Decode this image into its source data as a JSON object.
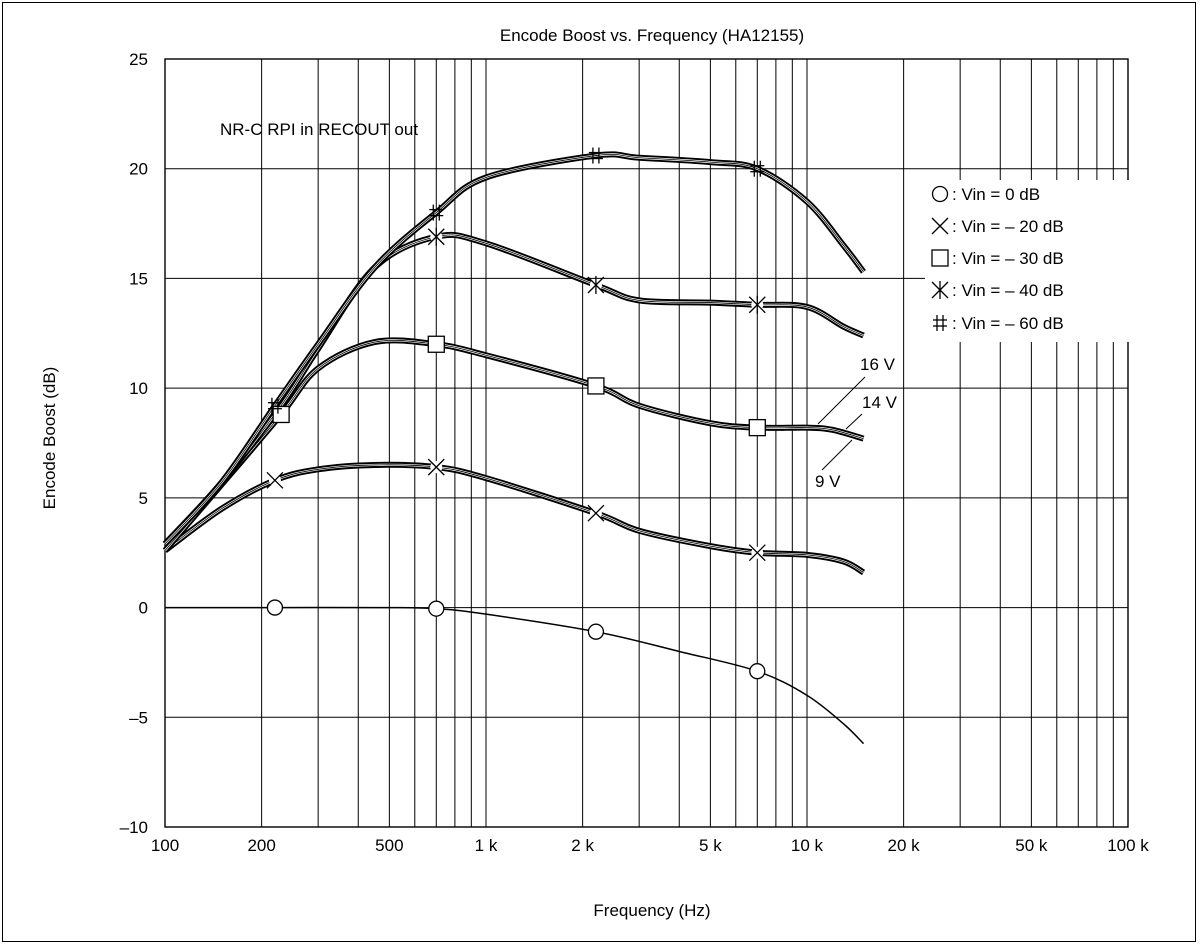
{
  "chart_data": {
    "type": "line",
    "title": "Encode Boost vs. Frequency (HA12155)",
    "xlabel": "Frequency (Hz)",
    "ylabel": "Encode Boost (dB)",
    "x_scale": "log",
    "xlim": [
      100,
      100000
    ],
    "ylim": [
      -10,
      25
    ],
    "x_ticks": [
      100,
      200,
      500,
      1000,
      2000,
      5000,
      10000,
      20000,
      50000,
      100000
    ],
    "x_tick_labels": [
      "100",
      "200",
      "500",
      "1 k",
      "2 k",
      "5 k",
      "10 k",
      "20 k",
      "50 k",
      "100 k"
    ],
    "y_ticks": [
      -10,
      -5,
      0,
      5,
      10,
      15,
      20,
      25
    ],
    "y_tick_labels": [
      "–10",
      "–5",
      "0",
      "5",
      "10",
      "15",
      "20",
      "25"
    ],
    "grid": true,
    "legend_position": "right",
    "annotations": {
      "condition": "NR-C  RPI in RECOUT out",
      "voltage_labels": [
        "16 V",
        "14 V",
        "9 V"
      ]
    },
    "series": [
      {
        "name": ": Vin = 0 dB",
        "marker": "circle",
        "x": [
          100,
          220,
          500,
          700,
          1000,
          2200,
          4000,
          7000,
          10000,
          13000,
          15000
        ],
        "y": [
          0,
          0,
          0,
          -0.05,
          -0.3,
          -1.1,
          -2.0,
          -2.9,
          -4.0,
          -5.3,
          -6.2
        ],
        "marker_x": [
          220,
          700,
          2200,
          7000
        ]
      },
      {
        "name": ": Vin = – 20 dB",
        "marker": "x",
        "x": [
          100,
          150,
          220,
          300,
          450,
          700,
          1000,
          2200,
          3000,
          5000,
          7000,
          10000,
          13000,
          15000
        ],
        "y": [
          2.6,
          4.5,
          5.8,
          6.3,
          6.5,
          6.4,
          5.9,
          4.3,
          3.5,
          2.8,
          2.5,
          2.4,
          2.1,
          1.6
        ],
        "marker_x": [
          220,
          700,
          2200,
          7000
        ]
      },
      {
        "name": ": Vin = – 30 dB",
        "marker": "square",
        "x": [
          100,
          150,
          230,
          300,
          450,
          700,
          1000,
          2200,
          3000,
          5000,
          7000,
          10000,
          12000,
          15000
        ],
        "y": [
          2.6,
          5.6,
          8.8,
          10.9,
          12.1,
          12.0,
          11.5,
          10.1,
          9.2,
          8.4,
          8.2,
          8.2,
          8.1,
          7.7
        ],
        "marker_x": [
          230,
          700,
          2200,
          7000
        ]
      },
      {
        "name": ": Vin = – 40 dB",
        "marker": "asterisk",
        "x": [
          100,
          150,
          230,
          300,
          450,
          700,
          1000,
          2200,
          3000,
          5000,
          7000,
          10000,
          13000,
          15000
        ],
        "y": [
          2.9,
          5.7,
          9.2,
          11.8,
          15.5,
          16.9,
          16.6,
          14.7,
          14.0,
          13.9,
          13.8,
          13.7,
          12.8,
          12.4
        ],
        "marker_x": [
          700,
          2200,
          7000
        ]
      },
      {
        "name": ": Vin = – 60 dB",
        "marker": "hash",
        "x": [
          100,
          150,
          220,
          300,
          450,
          700,
          1000,
          2200,
          3000,
          5000,
          7000,
          10000,
          13000,
          15000
        ],
        "y": [
          2.9,
          5.7,
          9.2,
          12.0,
          15.5,
          18.0,
          19.6,
          20.6,
          20.5,
          20.3,
          20.0,
          18.5,
          16.5,
          15.3
        ],
        "marker_x": [
          220,
          700,
          2200,
          7000
        ]
      }
    ]
  }
}
